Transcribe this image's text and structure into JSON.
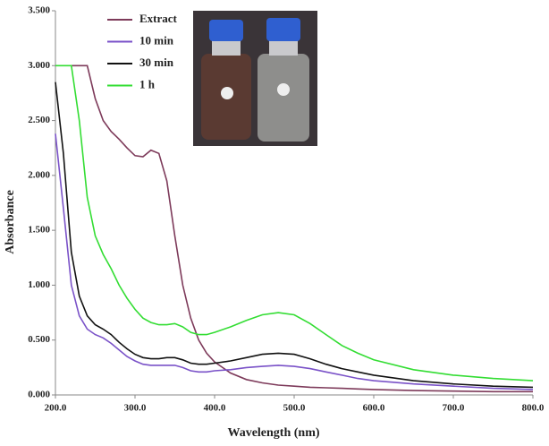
{
  "chart_data": {
    "type": "line",
    "xlabel": "Wavelength (nm)",
    "ylabel": "Absorbance",
    "x": [
      200,
      210,
      220,
      230,
      240,
      250,
      260,
      270,
      280,
      290,
      300,
      310,
      320,
      330,
      340,
      350,
      360,
      370,
      380,
      390,
      400,
      420,
      440,
      460,
      480,
      500,
      520,
      540,
      560,
      580,
      600,
      650,
      700,
      750,
      800
    ],
    "series": [
      {
        "name": "Extract",
        "color": "#7d3a5a",
        "values": [
          null,
          null,
          3.0,
          3.0,
          3.0,
          2.7,
          2.5,
          2.4,
          2.33,
          2.25,
          2.18,
          2.17,
          2.23,
          2.2,
          1.95,
          1.45,
          1.0,
          0.7,
          0.5,
          0.38,
          0.3,
          0.2,
          0.14,
          0.11,
          0.09,
          0.08,
          0.07,
          0.065,
          0.06,
          0.055,
          0.05,
          0.04,
          0.035,
          0.03,
          0.03
        ]
      },
      {
        "name": "10 min",
        "color": "#7a52c8",
        "values": [
          2.38,
          1.7,
          1.0,
          0.72,
          0.6,
          0.55,
          0.52,
          0.47,
          0.41,
          0.35,
          0.31,
          0.28,
          0.27,
          0.27,
          0.27,
          0.27,
          0.25,
          0.22,
          0.21,
          0.21,
          0.22,
          0.23,
          0.25,
          0.26,
          0.27,
          0.26,
          0.24,
          0.21,
          0.18,
          0.15,
          0.13,
          0.1,
          0.08,
          0.06,
          0.05
        ]
      },
      {
        "name": "30 min",
        "color": "#111111",
        "values": [
          2.85,
          2.2,
          1.3,
          0.9,
          0.72,
          0.64,
          0.6,
          0.55,
          0.48,
          0.42,
          0.37,
          0.34,
          0.33,
          0.33,
          0.34,
          0.34,
          0.32,
          0.29,
          0.28,
          0.28,
          0.29,
          0.31,
          0.34,
          0.37,
          0.38,
          0.37,
          0.33,
          0.28,
          0.24,
          0.21,
          0.18,
          0.13,
          0.1,
          0.08,
          0.07
        ]
      },
      {
        "name": "1 h",
        "color": "#33dd33",
        "values": [
          3.0,
          3.0,
          3.0,
          2.5,
          1.8,
          1.45,
          1.28,
          1.15,
          1.0,
          0.88,
          0.78,
          0.7,
          0.66,
          0.64,
          0.64,
          0.65,
          0.62,
          0.57,
          0.55,
          0.55,
          0.57,
          0.62,
          0.68,
          0.73,
          0.75,
          0.73,
          0.65,
          0.55,
          0.45,
          0.38,
          0.32,
          0.23,
          0.18,
          0.15,
          0.13
        ]
      }
    ],
    "xlim": [
      200,
      800
    ],
    "xticks": [
      {
        "value": 200,
        "label": "200.0"
      },
      {
        "value": 300,
        "label": "300.0"
      },
      {
        "value": 400,
        "label": "400.0"
      },
      {
        "value": 500,
        "label": "500.0"
      },
      {
        "value": 600,
        "label": "600.0"
      },
      {
        "value": 700,
        "label": "700.0"
      },
      {
        "value": 800,
        "label": "800.0"
      }
    ],
    "ylim": [
      0,
      3.5
    ],
    "yticks": [
      {
        "value": 0,
        "label": "0.000"
      },
      {
        "value": 0.5,
        "label": "0.500"
      },
      {
        "value": 1,
        "label": "1.000"
      },
      {
        "value": 1.5,
        "label": "1.500"
      },
      {
        "value": 2,
        "label": "2.000"
      },
      {
        "value": 2.5,
        "label": "2.500"
      },
      {
        "value": 3,
        "label": "3.000"
      },
      {
        "value": 3.5,
        "label": "3.500"
      }
    ],
    "grid": false
  }
}
